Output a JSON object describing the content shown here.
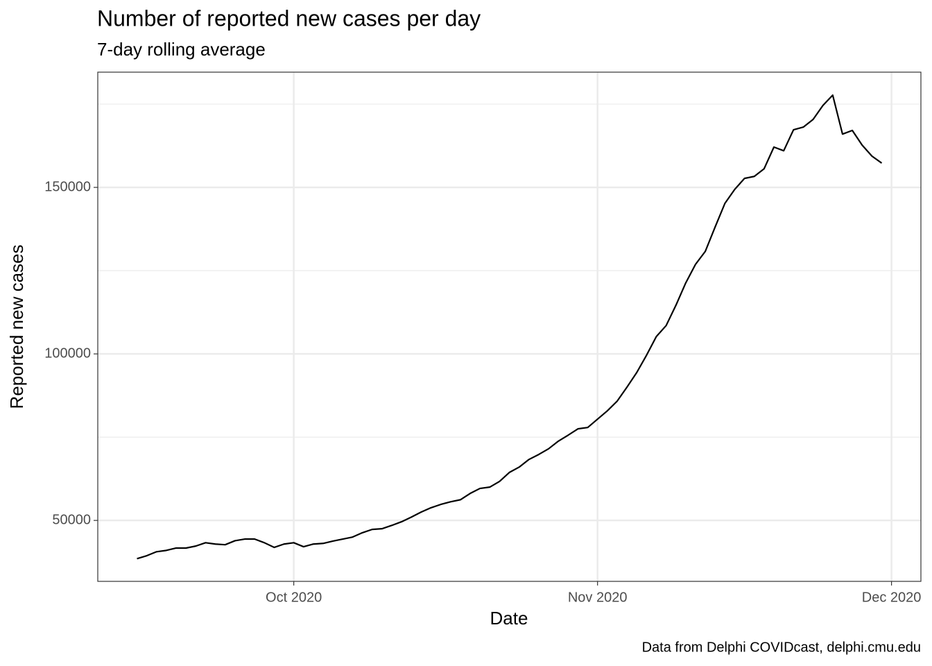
{
  "chart_data": {
    "type": "line",
    "title": "Number of reported new cases per day",
    "subtitle": "7-day rolling average",
    "x_label": "Date",
    "y_label": "Reported new cases",
    "caption": "Data from Delphi COVIDcast, delphi.cmu.edu",
    "x": [
      "2020-09-15",
      "2020-09-16",
      "2020-09-17",
      "2020-09-18",
      "2020-09-19",
      "2020-09-20",
      "2020-09-21",
      "2020-09-22",
      "2020-09-23",
      "2020-09-24",
      "2020-09-25",
      "2020-09-26",
      "2020-09-27",
      "2020-09-28",
      "2020-09-29",
      "2020-09-30",
      "2020-10-01",
      "2020-10-02",
      "2020-10-03",
      "2020-10-04",
      "2020-10-05",
      "2020-10-06",
      "2020-10-07",
      "2020-10-08",
      "2020-10-09",
      "2020-10-10",
      "2020-10-11",
      "2020-10-12",
      "2020-10-13",
      "2020-10-14",
      "2020-10-15",
      "2020-10-16",
      "2020-10-17",
      "2020-10-18",
      "2020-10-19",
      "2020-10-20",
      "2020-10-21",
      "2020-10-22",
      "2020-10-23",
      "2020-10-24",
      "2020-10-25",
      "2020-10-26",
      "2020-10-27",
      "2020-10-28",
      "2020-10-29",
      "2020-10-30",
      "2020-10-31",
      "2020-11-01",
      "2020-11-02",
      "2020-11-03",
      "2020-11-04",
      "2020-11-05",
      "2020-11-06",
      "2020-11-07",
      "2020-11-08",
      "2020-11-09",
      "2020-11-10",
      "2020-11-11",
      "2020-11-12",
      "2020-11-13",
      "2020-11-14",
      "2020-11-15",
      "2020-11-16",
      "2020-11-17",
      "2020-11-18",
      "2020-11-19",
      "2020-11-20",
      "2020-11-21",
      "2020-11-22",
      "2020-11-23",
      "2020-11-24",
      "2020-11-25",
      "2020-11-26",
      "2020-11-27",
      "2020-11-28",
      "2020-11-29",
      "2020-11-30"
    ],
    "series": [
      {
        "name": "Reported new cases",
        "color": "#000000",
        "values": [
          38500,
          39400,
          40600,
          41000,
          41700,
          41700,
          42300,
          43300,
          42900,
          42700,
          43900,
          44400,
          44400,
          43300,
          41900,
          42900,
          43300,
          42100,
          42900,
          43100,
          43800,
          44400,
          45000,
          46300,
          47300,
          47500,
          48500,
          49600,
          51000,
          52500,
          53800,
          54800,
          55600,
          56200,
          58100,
          59600,
          60000,
          61700,
          64400,
          66000,
          68300,
          69800,
          71500,
          73800,
          75600,
          77500,
          77900,
          80400,
          82900,
          85800,
          90000,
          94400,
          99600,
          105200,
          108500,
          114600,
          121300,
          126900,
          130800,
          138100,
          145200,
          149400,
          152700,
          153300,
          155600,
          162100,
          161000,
          167300,
          168100,
          170400,
          174600,
          177700,
          166000,
          167100,
          162700,
          159400,
          157300
        ]
      }
    ],
    "xlim": [
      "2020-09-11",
      "2020-12-04"
    ],
    "xticks": [
      {
        "value": "2020-10-01",
        "label": "Oct 2020"
      },
      {
        "value": "2020-11-01",
        "label": "Nov 2020"
      },
      {
        "value": "2020-12-01",
        "label": "Dec 2020"
      }
    ],
    "ylim": [
      31700,
      184600
    ],
    "yticks": [
      50000,
      100000,
      150000
    ],
    "y_minor_ticks": [
      75000,
      125000,
      175000
    ],
    "grid": true
  }
}
